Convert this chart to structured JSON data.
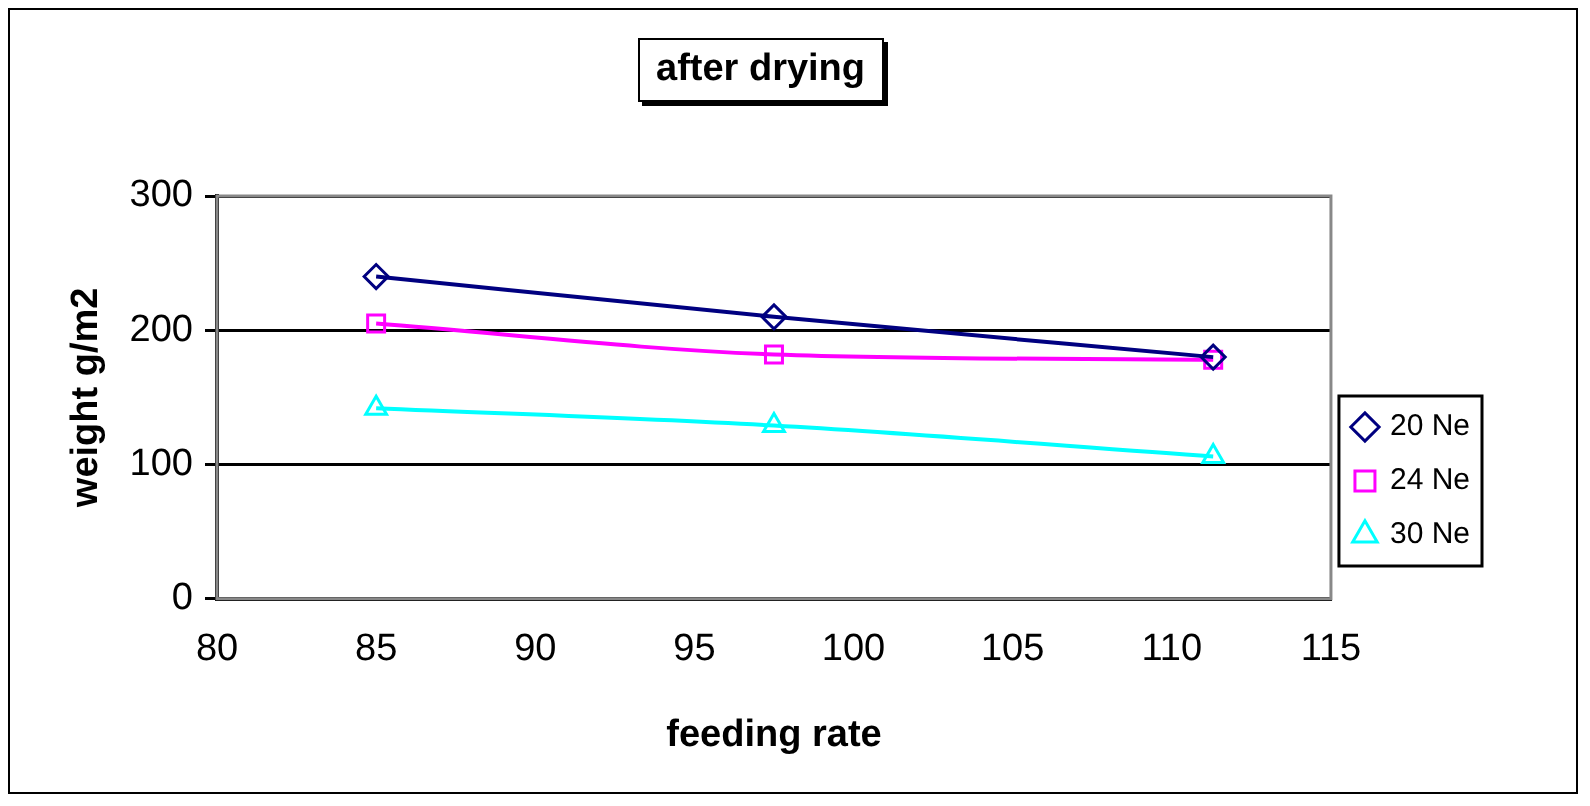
{
  "chart_data": {
    "type": "line",
    "title": "after drying",
    "xlabel": "feeding rate",
    "ylabel": "weight g/m2",
    "x": [
      85,
      97.5,
      111.3
    ],
    "series": [
      {
        "name": "20 Ne",
        "color": "#000080",
        "marker": "diamond",
        "values": [
          240,
          210,
          180
        ]
      },
      {
        "name": "24 Ne",
        "color": "#ff00ff",
        "marker": "square",
        "values": [
          205,
          182,
          178
        ]
      },
      {
        "name": "30 Ne",
        "color": "#00ffff",
        "marker": "triangle",
        "values": [
          142,
          129,
          106
        ]
      }
    ],
    "xlim": [
      80,
      115
    ],
    "xticks": [
      80,
      85,
      90,
      95,
      100,
      105,
      110,
      115
    ],
    "ylim": [
      0,
      300
    ],
    "yticks": [
      0,
      100,
      200,
      300
    ],
    "grid": "y",
    "legend": "right"
  }
}
